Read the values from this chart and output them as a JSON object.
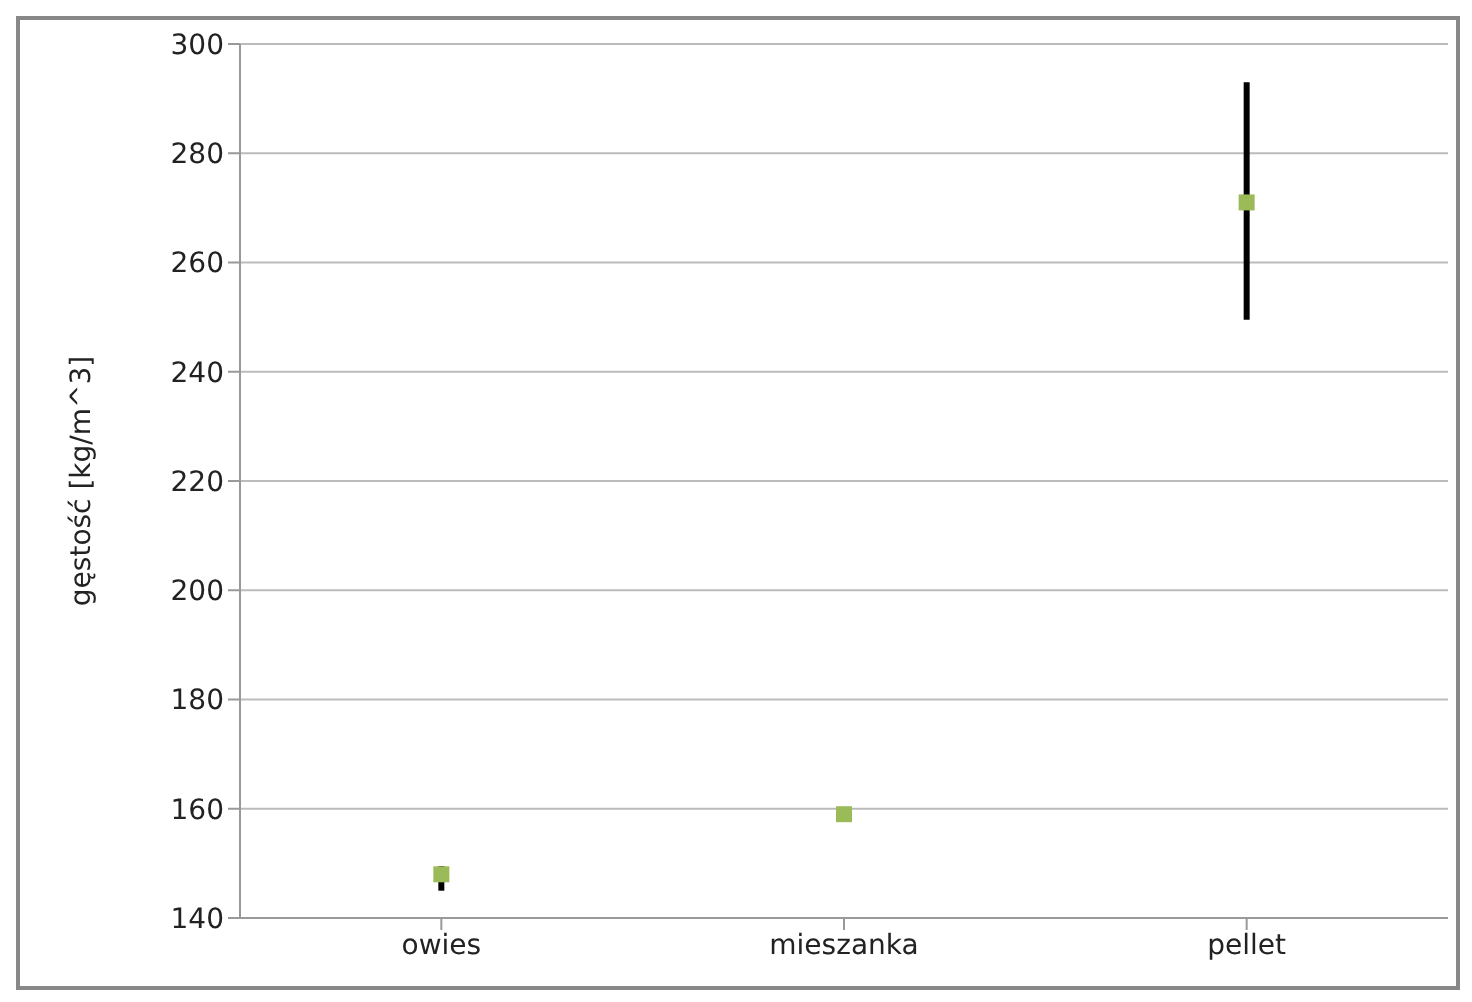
{
  "chart_data": {
    "type": "scatter",
    "ylabel": "gęstość [kg/m^3]",
    "categories": [
      "owies",
      "mieszanka",
      "pellet"
    ],
    "series": [
      {
        "color": "#9bbb59",
        "values": [
          148,
          159,
          271
        ],
        "errors": [
          [
            145,
            149.5
          ],
          null,
          [
            249.5,
            293
          ]
        ]
      }
    ],
    "ylim": [
      140,
      300
    ],
    "yticks": [
      140,
      160,
      180,
      200,
      220,
      240,
      260,
      280,
      300
    ],
    "grid": "y",
    "marker": "square"
  }
}
